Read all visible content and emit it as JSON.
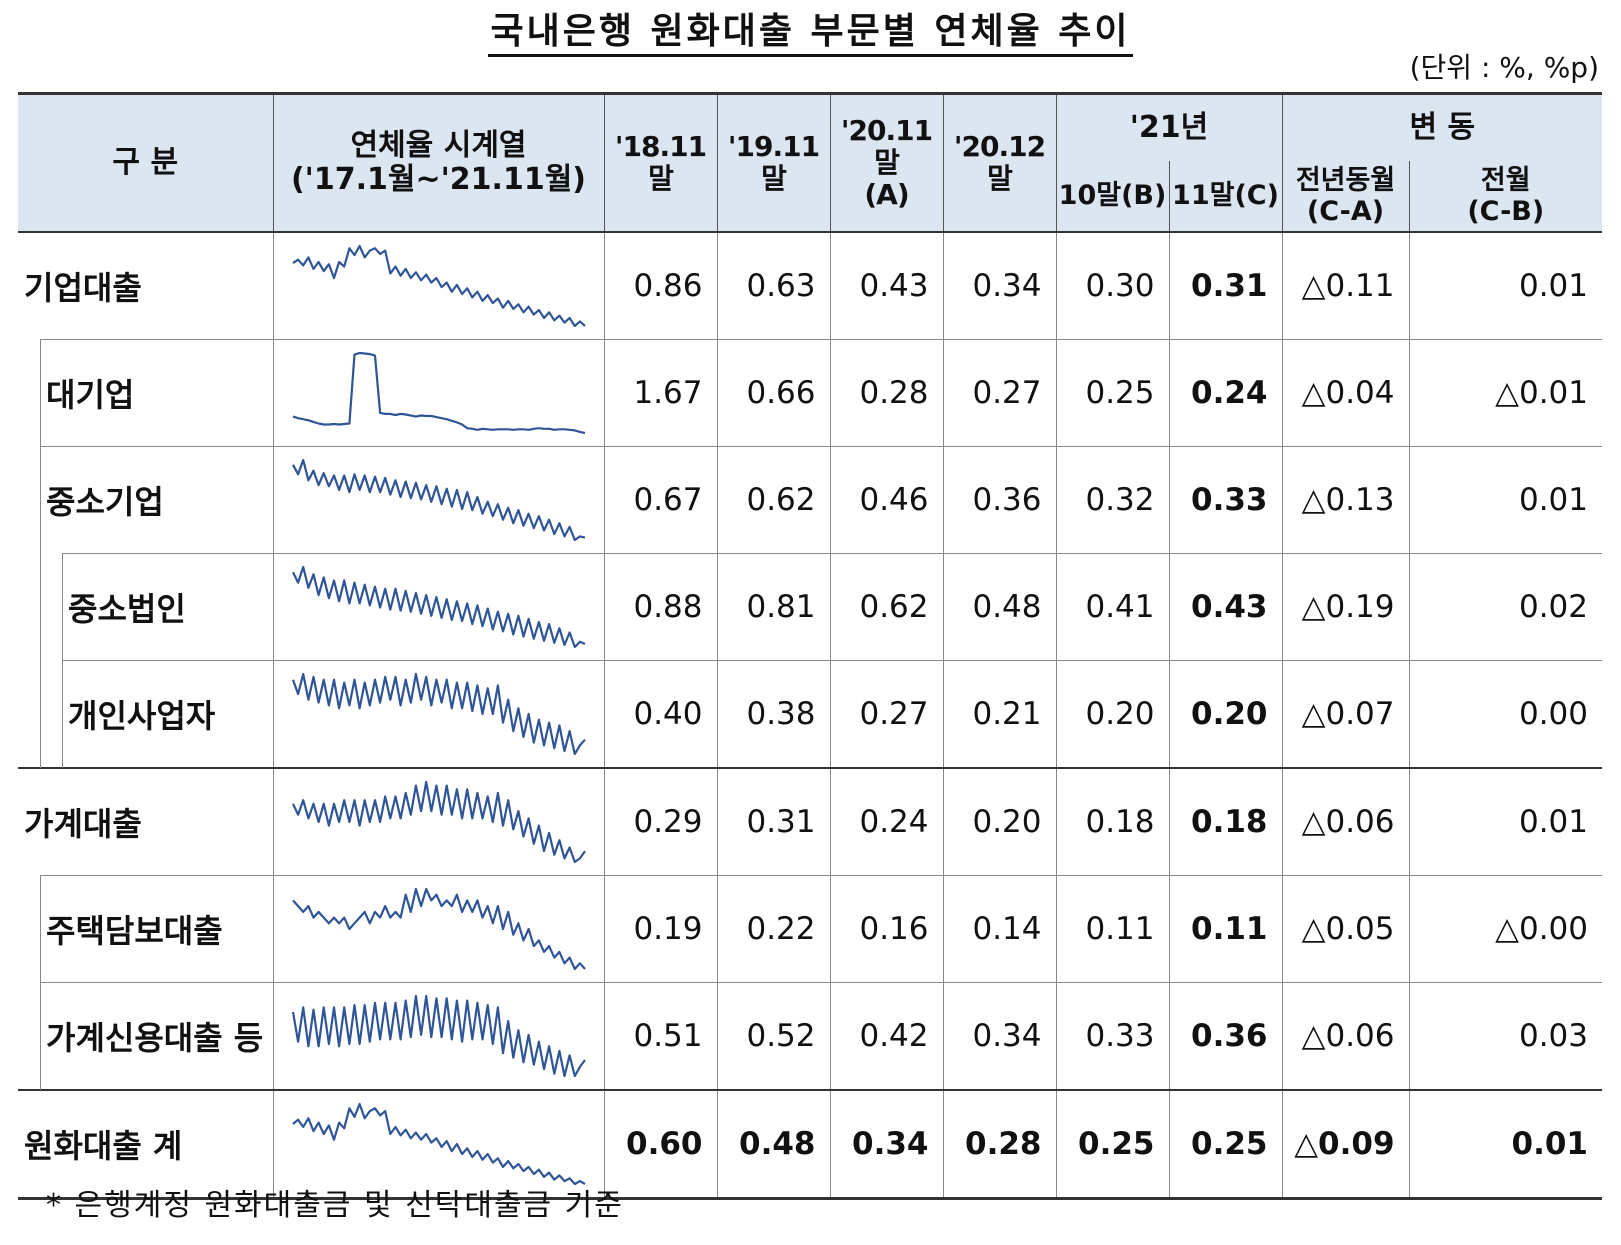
{
  "title": "국내은행 원화대출 부문별 연체율 추이",
  "unit": "(단위 : %, %p)",
  "header": {
    "category": "구 분",
    "series_line1": "연체율 시계열",
    "series_line2": "('17.1월~'21.11월)",
    "c1": "'18.11말",
    "c2": "'19.11말",
    "c3_line1": "'20.11말",
    "c3_line2": "(A)",
    "c4": "'20.12말",
    "y21": "'21년",
    "c5": "10말(B)",
    "c6": "11말(C)",
    "change": "변 동",
    "c7_line1": "전년동월",
    "c7_line2": "(C-A)",
    "c8_line1": "전월",
    "c8_line2": "(C-B)"
  },
  "rows": [
    {
      "label": "기업대출",
      "values": [
        "0.86",
        "0.63",
        "0.43",
        "0.34",
        "0.30",
        "0.31",
        "△0.11",
        "0.01"
      ],
      "spark": [
        0.85,
        0.88,
        0.83,
        0.9,
        0.8,
        0.86,
        0.78,
        0.84,
        0.72,
        0.86,
        0.82,
        0.98,
        0.92,
        1.0,
        0.9,
        0.96,
        0.98,
        0.93,
        0.96,
        0.76,
        0.82,
        0.74,
        0.8,
        0.72,
        0.77,
        0.7,
        0.75,
        0.68,
        0.72,
        0.64,
        0.68,
        0.6,
        0.66,
        0.58,
        0.63,
        0.55,
        0.6,
        0.52,
        0.57,
        0.5,
        0.54,
        0.46,
        0.52,
        0.45,
        0.49,
        0.42,
        0.47,
        0.4,
        0.44,
        0.37,
        0.42,
        0.35,
        0.39,
        0.33,
        0.37,
        0.3,
        0.34,
        0.3
      ]
    },
    {
      "label": "대기업",
      "values": [
        "1.67",
        "0.66",
        "0.28",
        "0.27",
        "0.25",
        "0.24",
        "△0.04",
        "△0.01"
      ],
      "spark": [
        0.55,
        0.52,
        0.5,
        0.48,
        0.45,
        0.42,
        0.4,
        0.4,
        0.41,
        0.4,
        0.41,
        0.42,
        1.72,
        1.75,
        1.74,
        1.73,
        1.7,
        0.62,
        0.6,
        0.6,
        0.58,
        0.6,
        0.59,
        0.57,
        0.55,
        0.57,
        0.56,
        0.56,
        0.54,
        0.52,
        0.5,
        0.47,
        0.44,
        0.4,
        0.33,
        0.32,
        0.3,
        0.32,
        0.31,
        0.3,
        0.31,
        0.31,
        0.31,
        0.3,
        0.31,
        0.31,
        0.3,
        0.32,
        0.33,
        0.32,
        0.32,
        0.3,
        0.31,
        0.31,
        0.3,
        0.29,
        0.26,
        0.24
      ]
    },
    {
      "label": "중소기업",
      "values": [
        "0.67",
        "0.62",
        "0.46",
        "0.36",
        "0.32",
        "0.33",
        "△0.13",
        "0.01"
      ],
      "spark": [
        0.93,
        0.85,
        0.97,
        0.8,
        0.88,
        0.76,
        0.86,
        0.75,
        0.84,
        0.72,
        0.84,
        0.7,
        0.85,
        0.72,
        0.84,
        0.7,
        0.83,
        0.7,
        0.82,
        0.68,
        0.8,
        0.66,
        0.79,
        0.65,
        0.78,
        0.64,
        0.76,
        0.62,
        0.75,
        0.6,
        0.73,
        0.58,
        0.72,
        0.56,
        0.7,
        0.55,
        0.66,
        0.52,
        0.62,
        0.5,
        0.6,
        0.47,
        0.57,
        0.44,
        0.55,
        0.42,
        0.52,
        0.4,
        0.5,
        0.38,
        0.47,
        0.35,
        0.44,
        0.33,
        0.41,
        0.3,
        0.33,
        0.32
      ]
    },
    {
      "label": "중소법인",
      "values": [
        "0.88",
        "0.81",
        "0.62",
        "0.48",
        "0.41",
        "0.43",
        "△0.19",
        "0.02"
      ],
      "spark": [
        1.1,
        1.0,
        1.15,
        0.95,
        1.08,
        0.88,
        1.05,
        0.85,
        1.02,
        0.82,
        1.02,
        0.8,
        1.0,
        0.8,
        0.98,
        0.78,
        0.96,
        0.76,
        0.94,
        0.74,
        0.94,
        0.73,
        0.92,
        0.72,
        0.9,
        0.7,
        0.88,
        0.68,
        0.86,
        0.66,
        0.84,
        0.64,
        0.82,
        0.63,
        0.8,
        0.6,
        0.78,
        0.58,
        0.75,
        0.55,
        0.72,
        0.53,
        0.7,
        0.5,
        0.68,
        0.48,
        0.65,
        0.46,
        0.62,
        0.44,
        0.6,
        0.42,
        0.56,
        0.4,
        0.52,
        0.38,
        0.43,
        0.41
      ]
    },
    {
      "label": "개인사업자",
      "values": [
        "0.40",
        "0.38",
        "0.27",
        "0.21",
        "0.20",
        "0.20",
        "△0.07",
        "0.00"
      ],
      "spark": [
        0.4,
        0.35,
        0.42,
        0.33,
        0.41,
        0.32,
        0.4,
        0.31,
        0.4,
        0.3,
        0.39,
        0.31,
        0.4,
        0.3,
        0.39,
        0.31,
        0.4,
        0.32,
        0.41,
        0.33,
        0.41,
        0.31,
        0.4,
        0.32,
        0.42,
        0.33,
        0.41,
        0.31,
        0.4,
        0.32,
        0.4,
        0.3,
        0.39,
        0.3,
        0.39,
        0.29,
        0.38,
        0.28,
        0.37,
        0.28,
        0.38,
        0.25,
        0.33,
        0.22,
        0.3,
        0.2,
        0.28,
        0.18,
        0.26,
        0.17,
        0.25,
        0.16,
        0.24,
        0.15,
        0.22,
        0.14,
        0.17,
        0.19
      ]
    },
    {
      "label": "가계대출",
      "values": [
        "0.29",
        "0.31",
        "0.24",
        "0.20",
        "0.18",
        "0.18",
        "△0.06",
        "0.01"
      ],
      "spark": [
        0.28,
        0.25,
        0.29,
        0.24,
        0.28,
        0.23,
        0.28,
        0.22,
        0.28,
        0.23,
        0.29,
        0.23,
        0.29,
        0.22,
        0.29,
        0.23,
        0.29,
        0.23,
        0.3,
        0.24,
        0.3,
        0.24,
        0.31,
        0.25,
        0.33,
        0.26,
        0.34,
        0.26,
        0.33,
        0.25,
        0.33,
        0.25,
        0.32,
        0.24,
        0.32,
        0.24,
        0.31,
        0.24,
        0.3,
        0.23,
        0.31,
        0.22,
        0.29,
        0.21,
        0.26,
        0.19,
        0.24,
        0.17,
        0.22,
        0.15,
        0.2,
        0.14,
        0.18,
        0.13,
        0.16,
        0.12,
        0.13,
        0.15
      ]
    },
    {
      "label": "주택담보대출",
      "values": [
        "0.19",
        "0.22",
        "0.16",
        "0.14",
        "0.11",
        "0.11",
        "△0.05",
        "△0.00"
      ],
      "spark": [
        0.2,
        0.19,
        0.18,
        0.19,
        0.17,
        0.18,
        0.17,
        0.16,
        0.17,
        0.16,
        0.17,
        0.15,
        0.16,
        0.17,
        0.18,
        0.16,
        0.18,
        0.17,
        0.19,
        0.17,
        0.18,
        0.17,
        0.21,
        0.18,
        0.22,
        0.19,
        0.22,
        0.2,
        0.21,
        0.19,
        0.2,
        0.19,
        0.21,
        0.18,
        0.2,
        0.18,
        0.2,
        0.17,
        0.19,
        0.16,
        0.19,
        0.15,
        0.18,
        0.14,
        0.16,
        0.13,
        0.15,
        0.12,
        0.13,
        0.11,
        0.12,
        0.1,
        0.11,
        0.09,
        0.1,
        0.08,
        0.09,
        0.08
      ]
    },
    {
      "label": "가계신용대출 등",
      "values": [
        "0.51",
        "0.52",
        "0.42",
        "0.34",
        "0.33",
        "0.36",
        "△0.06",
        "0.03"
      ],
      "spark": [
        0.48,
        0.35,
        0.5,
        0.33,
        0.49,
        0.33,
        0.5,
        0.34,
        0.5,
        0.33,
        0.5,
        0.34,
        0.51,
        0.34,
        0.51,
        0.35,
        0.52,
        0.36,
        0.52,
        0.36,
        0.52,
        0.36,
        0.53,
        0.37,
        0.55,
        0.38,
        0.55,
        0.37,
        0.54,
        0.37,
        0.54,
        0.36,
        0.53,
        0.35,
        0.53,
        0.36,
        0.52,
        0.36,
        0.51,
        0.34,
        0.5,
        0.3,
        0.44,
        0.28,
        0.4,
        0.26,
        0.38,
        0.25,
        0.35,
        0.23,
        0.33,
        0.21,
        0.31,
        0.2,
        0.29,
        0.2,
        0.24,
        0.27
      ]
    },
    {
      "label": "원화대출 계",
      "values": [
        "0.60",
        "0.48",
        "0.34",
        "0.28",
        "0.25",
        "0.25",
        "△0.09",
        "0.01"
      ],
      "spark": [
        0.66,
        0.69,
        0.64,
        0.7,
        0.61,
        0.67,
        0.59,
        0.65,
        0.55,
        0.67,
        0.63,
        0.77,
        0.71,
        0.8,
        0.7,
        0.75,
        0.77,
        0.72,
        0.75,
        0.59,
        0.64,
        0.58,
        0.62,
        0.56,
        0.6,
        0.55,
        0.59,
        0.53,
        0.56,
        0.5,
        0.54,
        0.47,
        0.52,
        0.45,
        0.49,
        0.43,
        0.47,
        0.41,
        0.45,
        0.39,
        0.42,
        0.36,
        0.4,
        0.35,
        0.38,
        0.33,
        0.36,
        0.31,
        0.34,
        0.29,
        0.32,
        0.27,
        0.3,
        0.26,
        0.28,
        0.24,
        0.26,
        0.24
      ]
    }
  ],
  "footnote": "* 은행계정 원화대출금 및 신탁대출금 기준",
  "colors": {
    "header_bg": "#dce6f1",
    "sparkline": "#2f5597"
  }
}
